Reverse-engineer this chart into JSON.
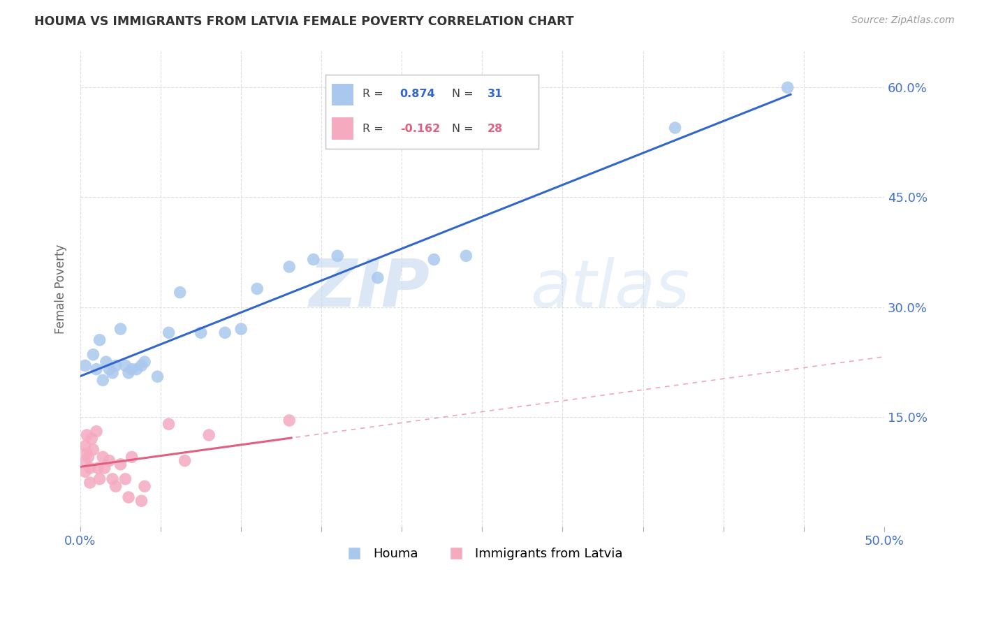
{
  "title": "HOUMA VS IMMIGRANTS FROM LATVIA FEMALE POVERTY CORRELATION CHART",
  "source": "Source: ZipAtlas.com",
  "ylabel": "Female Poverty",
  "xlim": [
    0.0,
    0.5
  ],
  "ylim": [
    0.0,
    0.65
  ],
  "xticks": [
    0.0,
    0.05,
    0.1,
    0.15,
    0.2,
    0.25,
    0.3,
    0.35,
    0.4,
    0.45,
    0.5
  ],
  "yticks": [
    0.0,
    0.15,
    0.3,
    0.45,
    0.6
  ],
  "xtick_labels_show": [
    "0.0%",
    "",
    "",
    "",
    "",
    "",
    "",
    "",
    "",
    "",
    "50.0%"
  ],
  "ytick_labels_right": [
    "",
    "15.0%",
    "30.0%",
    "45.0%",
    "60.0%"
  ],
  "houma_color": "#aac8ee",
  "latvia_color": "#f5aac0",
  "houma_line_color": "#3366cc",
  "latvia_line_color": "#e06080",
  "houma_R": 0.874,
  "houma_N": 31,
  "latvia_R": -0.162,
  "latvia_N": 28,
  "houma_x": [
    0.003,
    0.008,
    0.01,
    0.012,
    0.014,
    0.016,
    0.018,
    0.02,
    0.022,
    0.025,
    0.028,
    0.03,
    0.032,
    0.035,
    0.038,
    0.04,
    0.048,
    0.055,
    0.062,
    0.075,
    0.09,
    0.1,
    0.11,
    0.13,
    0.145,
    0.16,
    0.185,
    0.22,
    0.24,
    0.37,
    0.44
  ],
  "houma_y": [
    0.22,
    0.235,
    0.215,
    0.255,
    0.2,
    0.225,
    0.215,
    0.21,
    0.22,
    0.27,
    0.22,
    0.21,
    0.215,
    0.215,
    0.22,
    0.225,
    0.205,
    0.265,
    0.32,
    0.265,
    0.265,
    0.27,
    0.325,
    0.355,
    0.365,
    0.37,
    0.34,
    0.365,
    0.37,
    0.545,
    0.6
  ],
  "latvia_x": [
    0.003,
    0.003,
    0.003,
    0.004,
    0.004,
    0.005,
    0.006,
    0.006,
    0.007,
    0.008,
    0.01,
    0.011,
    0.012,
    0.014,
    0.015,
    0.018,
    0.02,
    0.022,
    0.025,
    0.028,
    0.03,
    0.032,
    0.038,
    0.04,
    0.055,
    0.065,
    0.08,
    0.13
  ],
  "latvia_y": [
    0.11,
    0.09,
    0.075,
    0.125,
    0.1,
    0.095,
    0.08,
    0.06,
    0.12,
    0.105,
    0.13,
    0.08,
    0.065,
    0.095,
    0.08,
    0.09,
    0.065,
    0.055,
    0.085,
    0.065,
    0.04,
    0.095,
    0.035,
    0.055,
    0.14,
    0.09,
    0.125,
    0.145
  ],
  "watermark_zip": "ZIP",
  "watermark_atlas": "atlas",
  "background_color": "#ffffff",
  "grid_color": "#d8d8d8"
}
